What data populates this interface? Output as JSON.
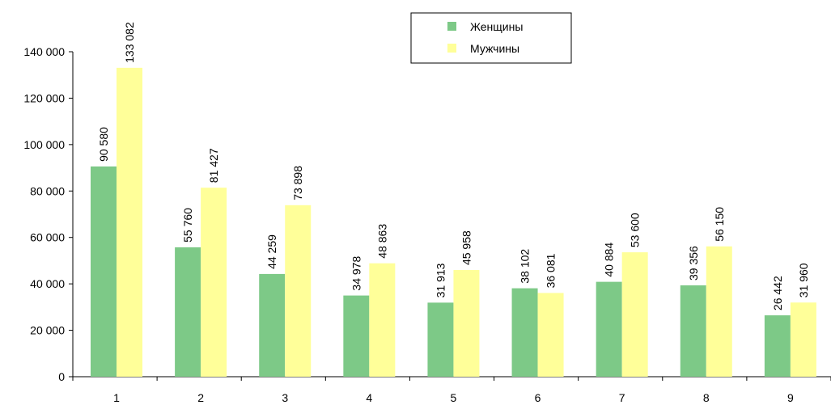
{
  "chart_data": {
    "type": "bar",
    "categories": [
      "1",
      "2",
      "3",
      "4",
      "5",
      "6",
      "7",
      "8",
      "9"
    ],
    "series": [
      {
        "name": "Женщины",
        "values": [
          90580,
          55760,
          44259,
          34978,
          31913,
          38102,
          40884,
          39356,
          26442
        ],
        "color": "#7dc987"
      },
      {
        "name": "Мужчины",
        "values": [
          133082,
          81427,
          73898,
          48863,
          45958,
          36081,
          53600,
          56150,
          31960
        ],
        "color": "#ffff99"
      }
    ],
    "yticks": [
      0,
      20000,
      40000,
      60000,
      80000,
      100000,
      120000,
      140000
    ],
    "ylim": [
      0,
      140000
    ],
    "grid": false,
    "legend_position": "top-right",
    "data_labels": true
  }
}
